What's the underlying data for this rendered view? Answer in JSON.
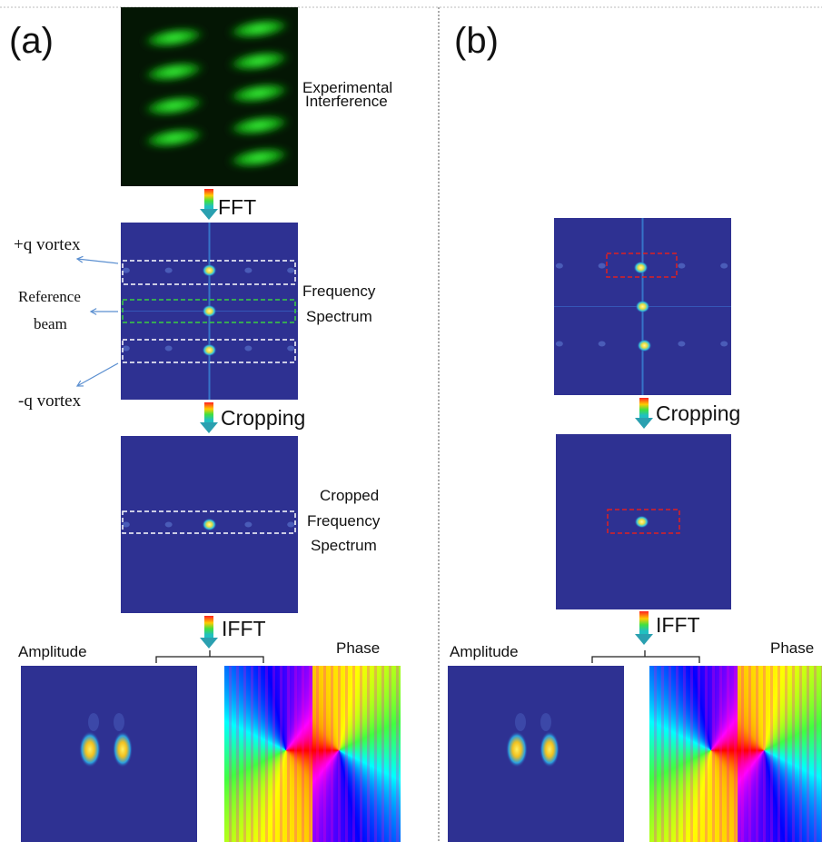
{
  "panel_a": {
    "label": "(a)",
    "interference_label": [
      "Experimental",
      "Interference"
    ],
    "fft": "FFT",
    "plus_q": "+q vortex",
    "reference": [
      "Reference",
      "beam"
    ],
    "minus_q": "-q vortex",
    "spectrum_label": [
      "Frequency",
      "Spectrum"
    ],
    "cropping": "Cropping",
    "cropped_label": [
      "Cropped",
      "Frequency",
      "Spectrum"
    ],
    "ifft": "IFFT",
    "amplitude": "Amplitude",
    "phase": "Phase"
  },
  "panel_b": {
    "label": "(b)",
    "cropping": "Cropping",
    "ifft": "IFFT",
    "amplitude": "Amplitude",
    "phase": "Phase"
  }
}
